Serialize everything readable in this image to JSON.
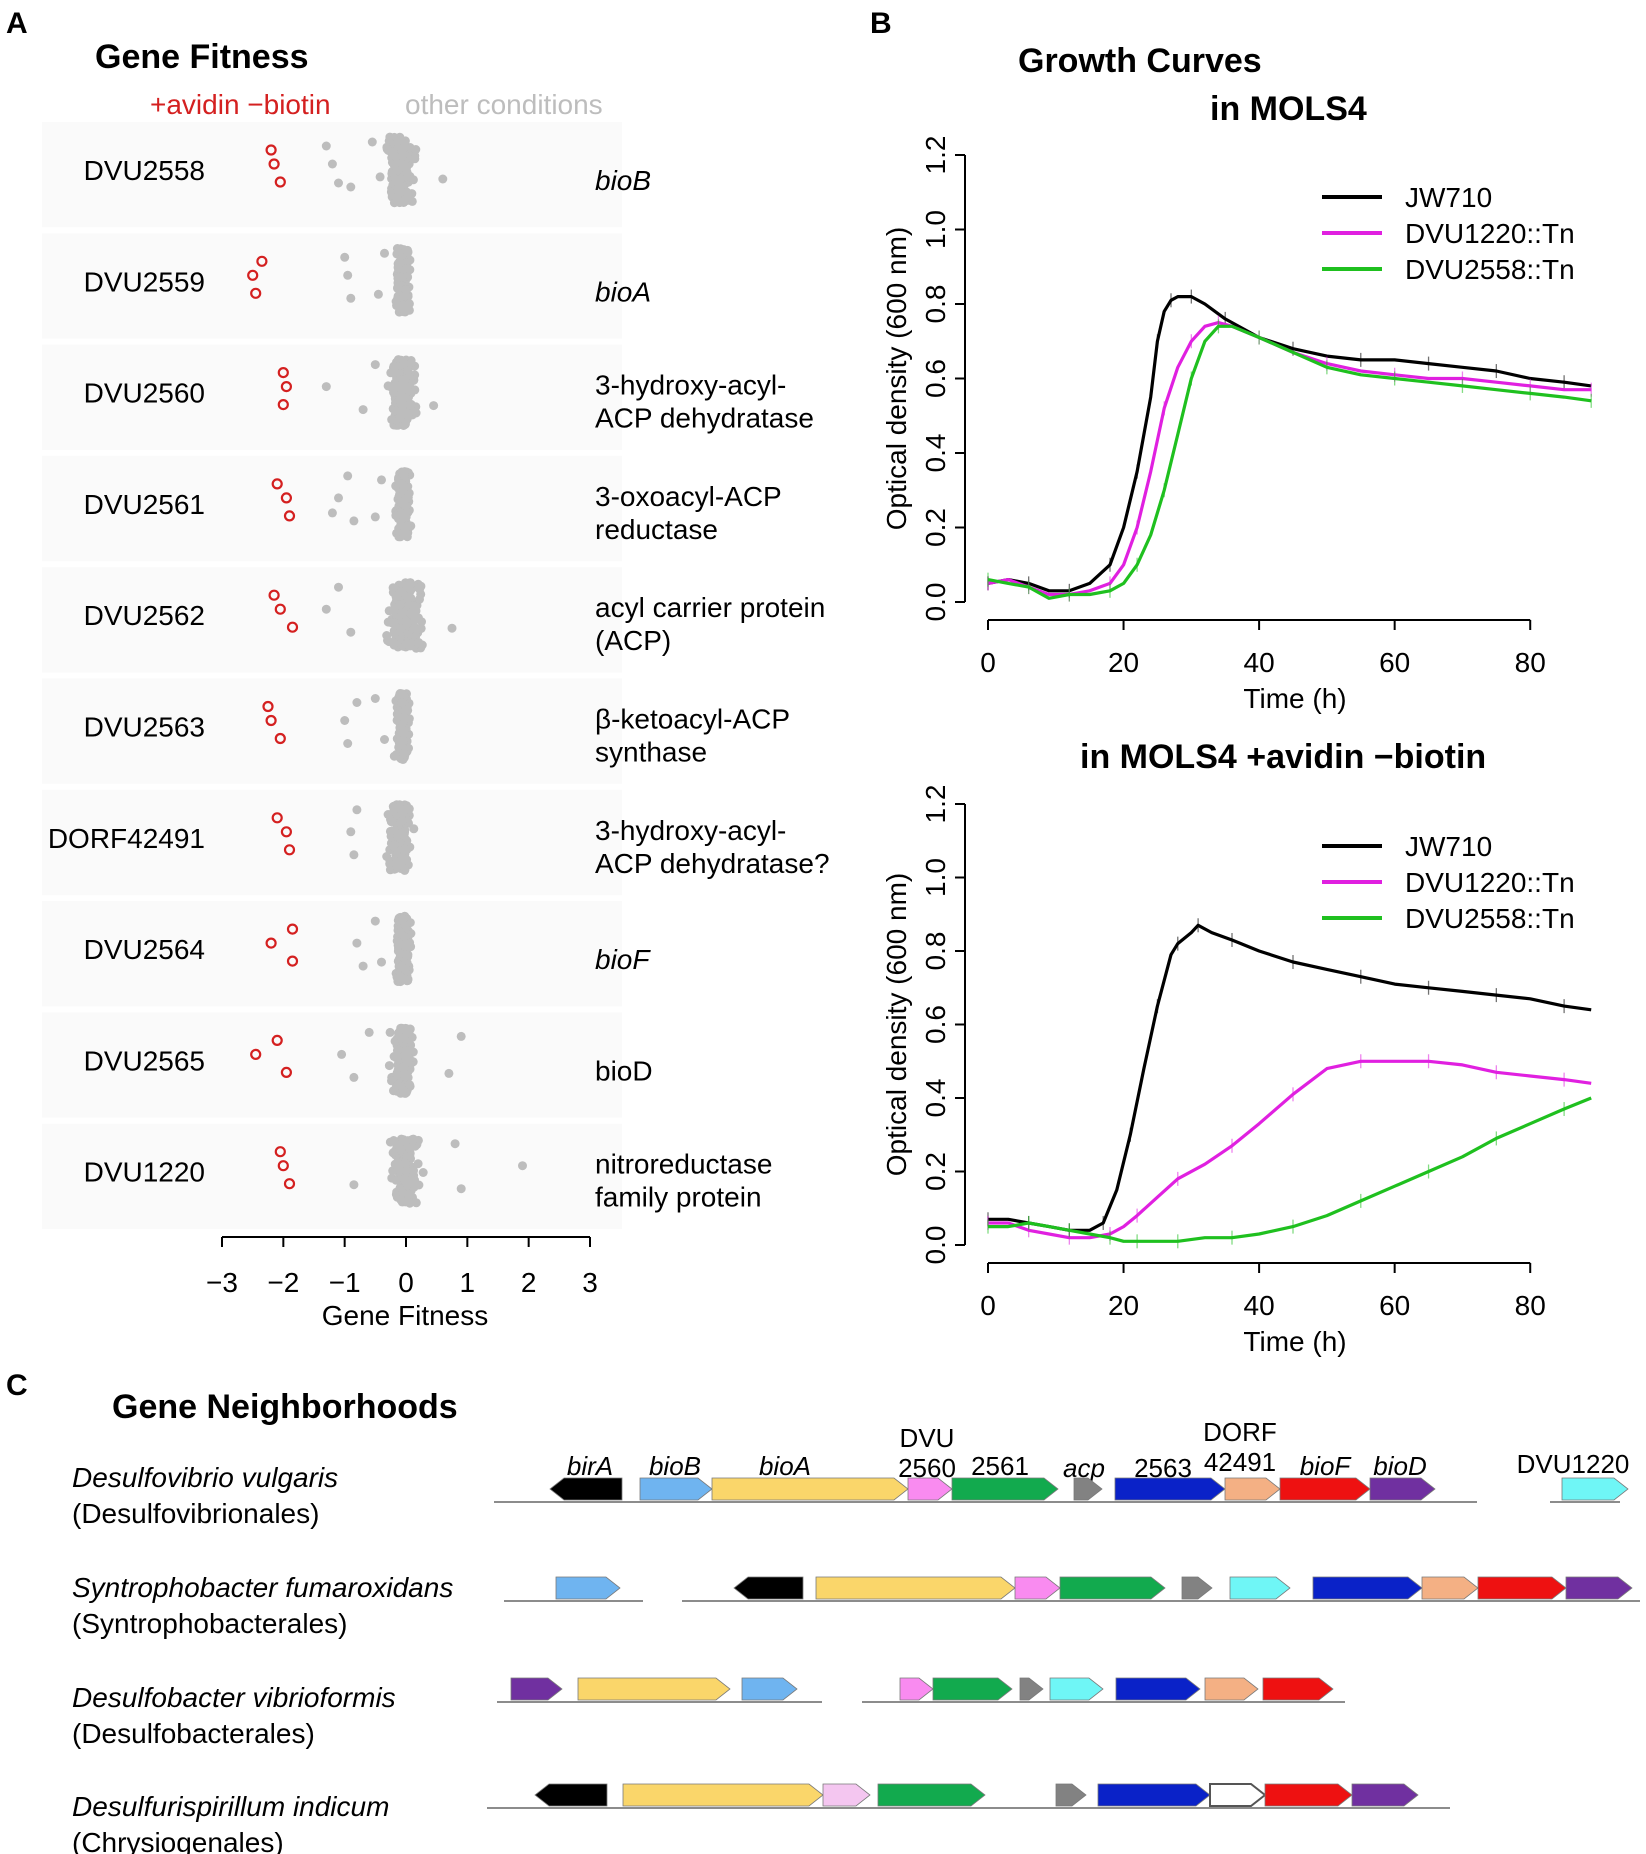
{
  "panels": {
    "a": "A",
    "b": "B",
    "c": "C"
  },
  "fitness": {
    "title": "Gene Fitness",
    "legend_red": "+avidin −biotin",
    "legend_gray": "other conditions",
    "colors": {
      "red": "#d42020",
      "gray": "#bdbdbd"
    },
    "xlabel": "Gene Fitness",
    "xlim": [
      -3,
      3
    ],
    "xticks": [
      "−3",
      "−2",
      "−1",
      "0",
      "1",
      "2",
      "3"
    ],
    "genes": [
      {
        "id": "DVU2558",
        "desc": [
          "bioB"
        ],
        "italic": true,
        "red": [
          -2.2,
          -2.15,
          -2.05
        ],
        "gray_center": -0.1,
        "gray_spread": 0.38,
        "outliers": [
          -1.2,
          -0.9,
          -0.55,
          -1.1,
          -1.3,
          0.6
        ]
      },
      {
        "id": "DVU2559",
        "desc": [
          "bioA"
        ],
        "italic": true,
        "red": [
          -2.35,
          -2.5,
          -2.45
        ],
        "gray_center": -0.05,
        "gray_spread": 0.2,
        "outliers": [
          -0.95,
          -0.9,
          -0.35,
          -0.45,
          -1.0
        ]
      },
      {
        "id": "DVU2560",
        "desc": [
          "3-hydroxy-acyl-",
          "ACP dehydratase"
        ],
        "italic": false,
        "red": [
          -2.0,
          -1.95,
          -2.0
        ],
        "gray_center": -0.05,
        "gray_spread": 0.35,
        "outliers": [
          -1.3,
          -0.7,
          -0.5,
          0.45
        ]
      },
      {
        "id": "DVU2561",
        "desc": [
          "3-oxoacyl-ACP",
          "reductase"
        ],
        "italic": false,
        "red": [
          -2.1,
          -1.95,
          -1.9
        ],
        "gray_center": -0.05,
        "gray_spread": 0.22,
        "outliers": [
          -1.1,
          -0.85,
          -0.95,
          -0.5,
          -0.4,
          -1.2
        ]
      },
      {
        "id": "DVU2562",
        "desc": [
          "acyl carrier protein",
          "(ACP)"
        ],
        "italic": false,
        "red": [
          -2.15,
          -2.05,
          -1.85
        ],
        "gray_center": 0.0,
        "gray_spread": 0.55,
        "outliers": [
          -1.3,
          -0.9,
          -1.1,
          0.75
        ]
      },
      {
        "id": "DVU2563",
        "desc": [
          "β-ketoacyl-ACP",
          "synthase"
        ],
        "italic": false,
        "red": [
          -2.25,
          -2.2,
          -2.05
        ],
        "gray_center": -0.05,
        "gray_spread": 0.2,
        "outliers": [
          -1.0,
          -0.95,
          -0.5,
          -0.35,
          -0.8
        ]
      },
      {
        "id": "DORF42491",
        "desc": [
          "3-hydroxy-acyl-",
          "ACP dehydratase?"
        ],
        "italic": false,
        "red": [
          -2.1,
          -1.95,
          -1.9
        ],
        "gray_center": -0.1,
        "gray_spread": 0.35,
        "outliers": [
          -0.9,
          -0.85,
          -0.8
        ]
      },
      {
        "id": "DVU2564",
        "desc": [
          "bioF"
        ],
        "italic": true,
        "red": [
          -1.85,
          -2.2,
          -1.85
        ],
        "gray_center": -0.05,
        "gray_spread": 0.22,
        "outliers": [
          -0.8,
          -0.7,
          -0.5,
          -0.4
        ]
      },
      {
        "id": "DVU2565",
        "desc": [
          "bioD"
        ],
        "italic": false,
        "red": [
          -2.1,
          -2.45,
          -1.95
        ],
        "gray_center": -0.05,
        "gray_spread": 0.32,
        "outliers": [
          -1.05,
          -0.85,
          -0.6,
          0.7,
          0.9
        ]
      },
      {
        "id": "DVU1220",
        "desc": [
          "nitroreductase",
          "family protein"
        ],
        "italic": false,
        "red": [
          -2.05,
          -2.0,
          -1.9
        ],
        "gray_center": 0.0,
        "gray_spread": 0.42,
        "outliers": [
          1.9,
          0.9,
          0.8,
          -0.85
        ]
      }
    ]
  },
  "growth": {
    "title1": "Growth Curves",
    "title2": "in MOLS4",
    "title3": "in MOLS4 +avidin −biotin",
    "xlabel": "Time (h)",
    "ylabel": "Optical density (600 nm)",
    "xticks": [
      "0",
      "20",
      "40",
      "60",
      "80"
    ],
    "yticks": [
      "0.0",
      "0.2",
      "0.4",
      "0.6",
      "0.8",
      "1.0",
      "1.2"
    ],
    "legend": [
      "JW710",
      "DVU1220::Tn",
      "DVU2558::Tn"
    ]
  },
  "chart_data": [
    {
      "type": "scatter",
      "title": "Gene Fitness",
      "xlabel": "Gene Fitness",
      "xlim": [
        -3,
        3
      ],
      "categories": [
        "DVU2558",
        "DVU2559",
        "DVU2560",
        "DVU2561",
        "DVU2562",
        "DVU2563",
        "DORF42491",
        "DVU2564",
        "DVU2565",
        "DVU1220"
      ],
      "series": [
        {
          "name": "+avidin −biotin",
          "color": "#d42020",
          "values": [
            [
              -2.2,
              -2.15,
              -2.05
            ],
            [
              -2.35,
              -2.5,
              -2.45
            ],
            [
              -2.0,
              -1.95,
              -2.0
            ],
            [
              -2.1,
              -1.95,
              -1.9
            ],
            [
              -2.15,
              -2.05,
              -1.85
            ],
            [
              -2.25,
              -2.2,
              -2.05
            ],
            [
              -2.1,
              -1.95,
              -1.9
            ],
            [
              -1.85,
              -2.2,
              -1.85
            ],
            [
              -2.1,
              -2.45,
              -1.95
            ],
            [
              -2.05,
              -2.0,
              -1.9
            ]
          ]
        },
        {
          "name": "other conditions",
          "color": "#bdbdbd",
          "center": [
            -0.1,
            -0.05,
            -0.05,
            -0.05,
            0.0,
            -0.05,
            -0.1,
            -0.05,
            -0.05,
            0.0
          ]
        }
      ]
    },
    {
      "type": "line",
      "title": "Growth Curves in MOLS4",
      "xlabel": "Time (h)",
      "ylabel": "Optical density (600 nm)",
      "xlim": [
        0,
        90
      ],
      "ylim": [
        0,
        1.2
      ],
      "series": [
        {
          "name": "JW710",
          "color": "#000000",
          "x": [
            0,
            3,
            6,
            9,
            12,
            15,
            18,
            20,
            22,
            24,
            25,
            26,
            27,
            28,
            30,
            32,
            35,
            40,
            45,
            50,
            55,
            60,
            65,
            70,
            75,
            80,
            85,
            89
          ],
          "y": [
            0.05,
            0.06,
            0.05,
            0.03,
            0.03,
            0.05,
            0.1,
            0.2,
            0.35,
            0.55,
            0.7,
            0.78,
            0.81,
            0.82,
            0.82,
            0.8,
            0.76,
            0.71,
            0.68,
            0.66,
            0.65,
            0.65,
            0.64,
            0.63,
            0.62,
            0.6,
            0.59,
            0.58
          ]
        },
        {
          "name": "DVU1220::Tn",
          "color": "#e020e0",
          "x": [
            0,
            3,
            6,
            9,
            12,
            15,
            18,
            20,
            22,
            24,
            26,
            28,
            30,
            32,
            34,
            36,
            40,
            45,
            50,
            55,
            60,
            65,
            70,
            75,
            80,
            85,
            89
          ],
          "y": [
            0.05,
            0.06,
            0.04,
            0.02,
            0.02,
            0.03,
            0.05,
            0.1,
            0.2,
            0.35,
            0.52,
            0.63,
            0.7,
            0.74,
            0.75,
            0.74,
            0.71,
            0.67,
            0.64,
            0.62,
            0.61,
            0.6,
            0.6,
            0.59,
            0.58,
            0.57,
            0.57
          ]
        },
        {
          "name": "DVU2558::Tn",
          "color": "#1fc01f",
          "x": [
            0,
            3,
            6,
            9,
            12,
            15,
            18,
            20,
            22,
            24,
            26,
            28,
            30,
            32,
            34,
            36,
            40,
            45,
            50,
            55,
            60,
            65,
            70,
            75,
            80,
            85,
            89
          ],
          "y": [
            0.06,
            0.05,
            0.04,
            0.01,
            0.02,
            0.02,
            0.03,
            0.05,
            0.1,
            0.18,
            0.3,
            0.45,
            0.6,
            0.7,
            0.74,
            0.74,
            0.71,
            0.67,
            0.63,
            0.61,
            0.6,
            0.59,
            0.58,
            0.57,
            0.56,
            0.55,
            0.54
          ]
        }
      ]
    },
    {
      "type": "line",
      "title": "in MOLS4 +avidin −biotin",
      "xlabel": "Time (h)",
      "ylabel": "Optical density (600 nm)",
      "xlim": [
        0,
        90
      ],
      "ylim": [
        0,
        1.2
      ],
      "series": [
        {
          "name": "JW710",
          "color": "#000000",
          "x": [
            0,
            3,
            6,
            9,
            12,
            15,
            17,
            19,
            21,
            23,
            25,
            27,
            28,
            30,
            31,
            33,
            36,
            40,
            45,
            50,
            55,
            60,
            65,
            70,
            75,
            80,
            85,
            89
          ],
          "y": [
            0.07,
            0.07,
            0.06,
            0.05,
            0.04,
            0.04,
            0.06,
            0.15,
            0.3,
            0.48,
            0.65,
            0.79,
            0.82,
            0.85,
            0.87,
            0.85,
            0.83,
            0.8,
            0.77,
            0.75,
            0.73,
            0.71,
            0.7,
            0.69,
            0.68,
            0.67,
            0.65,
            0.64
          ]
        },
        {
          "name": "DVU1220::Tn",
          "color": "#e020e0",
          "x": [
            0,
            3,
            6,
            9,
            12,
            15,
            18,
            20,
            22,
            25,
            28,
            32,
            36,
            40,
            45,
            50,
            55,
            60,
            65,
            70,
            75,
            80,
            85,
            89
          ],
          "y": [
            0.06,
            0.06,
            0.04,
            0.03,
            0.02,
            0.02,
            0.03,
            0.05,
            0.08,
            0.13,
            0.18,
            0.22,
            0.27,
            0.33,
            0.41,
            0.48,
            0.5,
            0.5,
            0.5,
            0.49,
            0.47,
            0.46,
            0.45,
            0.44
          ]
        },
        {
          "name": "DVU2558::Tn",
          "color": "#1fc01f",
          "x": [
            0,
            3,
            6,
            9,
            12,
            15,
            18,
            20,
            22,
            25,
            28,
            32,
            36,
            40,
            45,
            50,
            55,
            60,
            65,
            70,
            75,
            80,
            85,
            89
          ],
          "y": [
            0.05,
            0.05,
            0.06,
            0.05,
            0.04,
            0.03,
            0.02,
            0.01,
            0.01,
            0.01,
            0.01,
            0.02,
            0.02,
            0.03,
            0.05,
            0.08,
            0.12,
            0.16,
            0.2,
            0.24,
            0.29,
            0.33,
            0.37,
            0.4
          ]
        }
      ]
    }
  ],
  "neighborhoods": {
    "title": "Gene Neighborhoods",
    "gene_labels": {
      "birA": "birA",
      "bioB": "bioB",
      "bioA": "bioA",
      "g2560a": "DVU",
      "g2560b": "2560",
      "g2561": "2561",
      "acp": "acp",
      "g2563": "2563",
      "dorf1": "DORF",
      "dorf2": "42491",
      "bioF": "bioF",
      "bioD": "bioD",
      "dvu1220": "DVU1220"
    },
    "colors": {
      "birA": "#000000",
      "bioB": "#6fb4f0",
      "bioA": "#fad66a",
      "g2560": "#f98bf0",
      "g2561": "#12aa4e",
      "acp": "#828282",
      "g2563": "#0a22c8",
      "dorf": "#f4b084",
      "bioF": "#ee1111",
      "bioD": "#7030a0",
      "dvu1220": "#6ff6f6"
    },
    "organisms": [
      {
        "name": "Desulfovibrio vulgaris",
        "order": "(Desulfovibrionales)"
      },
      {
        "name": "Syntrophobacter fumaroxidans",
        "order": "(Syntrophobacterales)"
      },
      {
        "name": "Desulfobacter vibrioformis",
        "order": "(Desulfobacterales)"
      },
      {
        "name": "Desulfurispirillum indicum",
        "order": "(Chrysiogenales)"
      }
    ]
  }
}
